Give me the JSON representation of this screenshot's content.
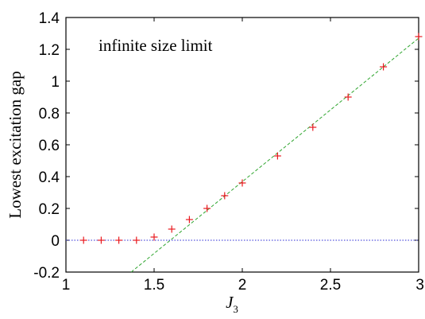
{
  "chart_data": {
    "type": "scatter",
    "title": "",
    "annotation": "infinite size limit",
    "xlabel": "J",
    "xlabel_subscript": "3",
    "ylabel": "Lowest excitation gap",
    "xlim": [
      1,
      3
    ],
    "ylim": [
      -0.2,
      1.4
    ],
    "x_ticks": [
      1,
      1.5,
      2,
      2.5,
      3
    ],
    "x_tick_labels": [
      "1",
      "1.5",
      "2",
      "2.5",
      "3"
    ],
    "y_ticks": [
      -0.2,
      0,
      0.2,
      0.4,
      0.6,
      0.8,
      1,
      1.2,
      1.4
    ],
    "y_tick_labels": [
      "-0.2",
      "0",
      "0.2",
      "0.4",
      "0.6",
      "0.8",
      "1",
      "1.2",
      "1.4"
    ],
    "grid": false,
    "series": [
      {
        "marker": "plus",
        "color": "#e8191f",
        "x": [
          1.1,
          1.2,
          1.3,
          1.4,
          1.5,
          1.6,
          1.7,
          1.8,
          1.9,
          2.0,
          2.2,
          2.4,
          2.6,
          2.8,
          3.0
        ],
        "y": [
          0.0,
          0.0,
          0.0,
          0.0,
          0.02,
          0.07,
          0.13,
          0.2,
          0.28,
          0.36,
          0.53,
          0.71,
          0.9,
          1.09,
          1.28
        ]
      }
    ],
    "lines": [
      {
        "style": "dashed",
        "color": "#2fa52f",
        "x": [
          1.37,
          3.0
        ],
        "y": [
          -0.2,
          1.27
        ]
      },
      {
        "style": "dotted",
        "color": "#2b2bd6",
        "x": [
          1.0,
          3.0
        ],
        "y": [
          0.0,
          0.0
        ]
      }
    ]
  }
}
